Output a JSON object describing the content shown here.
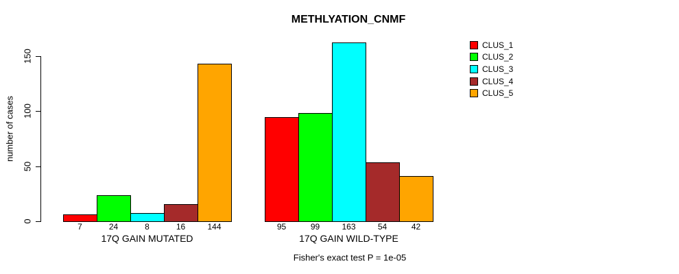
{
  "chart_data": {
    "type": "bar",
    "title": "METHLYATION_CNMF",
    "ylabel": "number of cases",
    "footer": "Fisher's exact test P = 1e-05",
    "groups": [
      "17Q GAIN MUTATED",
      "17Q GAIN WILD-TYPE"
    ],
    "series": [
      {
        "name": "CLUS_1",
        "color": "#ff0000",
        "values": [
          7,
          95
        ]
      },
      {
        "name": "CLUS_2",
        "color": "#00ff00",
        "values": [
          24,
          99
        ]
      },
      {
        "name": "CLUS_3",
        "color": "#00ffff",
        "values": [
          8,
          163
        ]
      },
      {
        "name": "CLUS_4",
        "color": "#a52a2a",
        "values": [
          16,
          54
        ]
      },
      {
        "name": "CLUS_5",
        "color": "#ffa500",
        "values": [
          144,
          42
        ]
      }
    ],
    "yticks": [
      0,
      50,
      100,
      150
    ],
    "ylim": [
      0,
      163
    ],
    "grid": false,
    "legend": {
      "position": "topright",
      "entries": [
        "CLUS_1",
        "CLUS_2",
        "CLUS_3",
        "CLUS_4",
        "CLUS_5"
      ]
    }
  }
}
